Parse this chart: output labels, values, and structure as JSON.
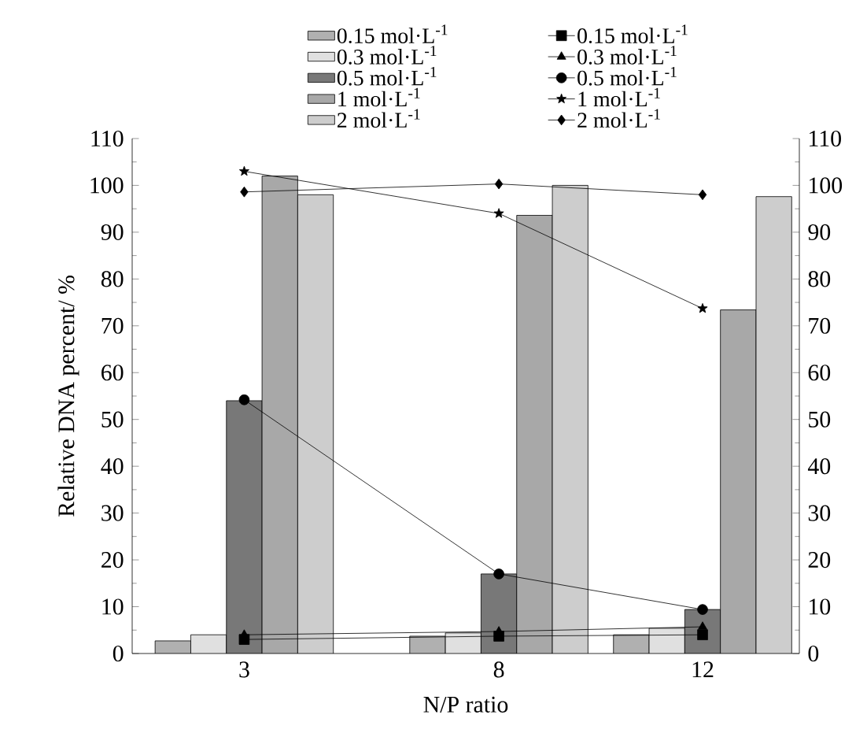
{
  "chart_data": {
    "type": "bar",
    "xlabel": "N/P ratio",
    "ylabel": "Relative DNA percent/ %",
    "x": [
      3,
      8,
      12
    ],
    "xlim": [
      0.8,
      13.9
    ],
    "xticks": [
      3,
      8,
      12
    ],
    "ylim": [
      0,
      110
    ],
    "yticks": [
      0,
      10,
      20,
      30,
      40,
      50,
      60,
      70,
      80,
      90,
      100,
      110
    ],
    "y2lim": [
      0,
      110
    ],
    "y2ticks": [
      0,
      10,
      20,
      30,
      40,
      50,
      60,
      70,
      80,
      90,
      100,
      110
    ],
    "legend": "top",
    "grid": false,
    "line_style": "solid",
    "series": [
      {
        "name": "0.15 mol·L$^{-1}$",
        "color": "#b0b0b0",
        "values": [
          2.7,
          3.7,
          4
        ]
      },
      {
        "name": "0.3 mol·L$^{-1}$",
        "color": "#e0e0e0",
        "values": [
          4,
          4.4,
          5.4
        ]
      },
      {
        "name": "0.5 mol·L$^{-1}$",
        "color": "#787878",
        "values": [
          54,
          17,
          9.4
        ]
      },
      {
        "name": "1 mol·L$^{-1}$",
        "color": "#a8a8a8",
        "values": [
          102,
          93.6,
          73.4
        ]
      },
      {
        "name": "2 mol·L$^{-1}$",
        "color": "#cdcdcd",
        "values": [
          98,
          100,
          97.6
        ]
      },
      {
        "name": "0.15 mol·L$^{-1}$",
        "type": "line",
        "marker": "square",
        "color": "#000000",
        "values": [
          3,
          3.7,
          4
        ]
      },
      {
        "name": "0.3 mol·L$^{-1}$",
        "type": "line",
        "marker": "triangle",
        "color": "#000000",
        "values": [
          4,
          4.7,
          5.7
        ]
      },
      {
        "name": "0.5 mol·L$^{-1}$",
        "type": "line",
        "marker": "circle",
        "color": "#000000",
        "values": [
          54.2,
          17,
          9.4
        ]
      },
      {
        "name": "1 mol·L$^{-1}$",
        "type": "line",
        "marker": "star",
        "color": "#000000",
        "values": [
          103,
          94,
          73.7
        ]
      },
      {
        "name": "2 mol·L$^{-1}$",
        "type": "line",
        "marker": "diamond",
        "color": "#000000",
        "values": [
          98.6,
          100.3,
          98
        ]
      }
    ]
  }
}
